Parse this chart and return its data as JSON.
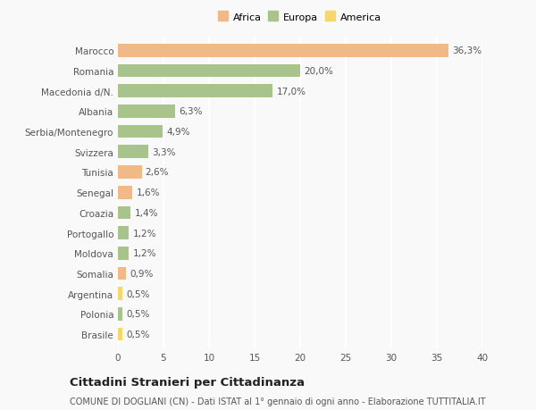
{
  "categories": [
    "Marocco",
    "Romania",
    "Macedonia d/N.",
    "Albania",
    "Serbia/Montenegro",
    "Svizzera",
    "Tunisia",
    "Senegal",
    "Croazia",
    "Portogallo",
    "Moldova",
    "Somalia",
    "Argentina",
    "Polonia",
    "Brasile"
  ],
  "values": [
    36.3,
    20.0,
    17.0,
    6.3,
    4.9,
    3.3,
    2.6,
    1.6,
    1.4,
    1.2,
    1.2,
    0.9,
    0.5,
    0.5,
    0.5
  ],
  "labels": [
    "36,3%",
    "20,0%",
    "17,0%",
    "6,3%",
    "4,9%",
    "3,3%",
    "2,6%",
    "1,6%",
    "1,4%",
    "1,2%",
    "1,2%",
    "0,9%",
    "0,5%",
    "0,5%",
    "0,5%"
  ],
  "colors": [
    "#f0b987",
    "#a8c48a",
    "#a8c48a",
    "#a8c48a",
    "#a8c48a",
    "#a8c48a",
    "#f0b987",
    "#f0b987",
    "#a8c48a",
    "#a8c48a",
    "#a8c48a",
    "#f0b987",
    "#f5d76e",
    "#a8c48a",
    "#f5d76e"
  ],
  "legend_labels": [
    "Africa",
    "Europa",
    "America"
  ],
  "legend_colors": [
    "#f0b987",
    "#a8c48a",
    "#f5d76e"
  ],
  "title1": "Cittadini Stranieri per Cittadinanza",
  "title2": "COMUNE DI DOGLIANI (CN) - Dati ISTAT al 1° gennaio di ogni anno - Elaborazione TUTTITALIA.IT",
  "xlim": [
    0,
    40
  ],
  "xticks": [
    0,
    5,
    10,
    15,
    20,
    25,
    30,
    35,
    40
  ],
  "bg_color": "#f9f9f9",
  "grid_color": "#ffffff",
  "bar_height": 0.65,
  "title1_fontsize": 9.5,
  "title2_fontsize": 7.0,
  "label_fontsize": 7.5,
  "tick_fontsize": 7.5,
  "legend_fontsize": 8.0
}
